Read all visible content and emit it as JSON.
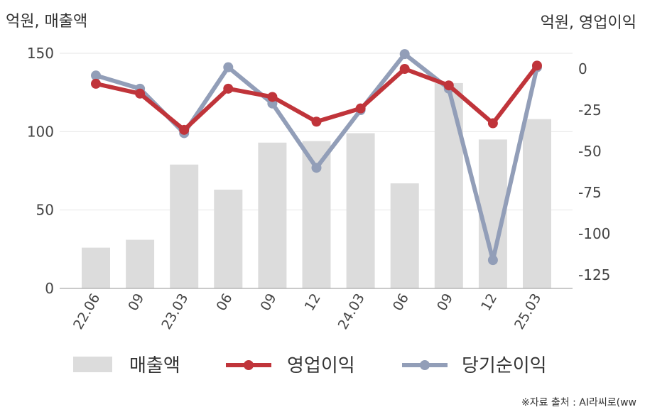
{
  "chart_data": {
    "type": "bar+line",
    "categories": [
      "22.06",
      "09",
      "23.03",
      "06",
      "09",
      "12",
      "24.03",
      "06",
      "09",
      "12",
      "25.03"
    ],
    "left_axis": {
      "label": "억원, 매출액",
      "range": [
        0,
        150
      ],
      "ticks": [
        0,
        50,
        100,
        150
      ]
    },
    "right_axis": {
      "label": "억원, 영업이익",
      "range": [
        -135,
        10
      ],
      "ticks": [
        0,
        -25,
        -50,
        -75,
        -100,
        -125
      ]
    },
    "series": [
      {
        "name": "매출액",
        "kind": "bar",
        "axis": "left",
        "color": "#dcdcdc",
        "values": [
          26,
          31,
          79,
          63,
          93,
          94,
          99,
          67,
          131,
          95,
          108
        ]
      },
      {
        "name": "영업이익",
        "kind": "line",
        "axis": "right",
        "color": "#c0343a",
        "values": [
          -9,
          -15,
          -37,
          -12,
          -17,
          -32,
          -24,
          0,
          -10,
          -33,
          2
        ]
      },
      {
        "name": "당기순이익",
        "kind": "line",
        "axis": "right",
        "color": "#929eb8",
        "values": [
          -4,
          -12,
          -39,
          1,
          -21,
          -60,
          -25,
          9,
          -12,
          -116,
          1
        ]
      }
    ],
    "legend_position": "bottom",
    "grid": true
  },
  "source_note": "※자료 출처 : AI라씨로(ww"
}
